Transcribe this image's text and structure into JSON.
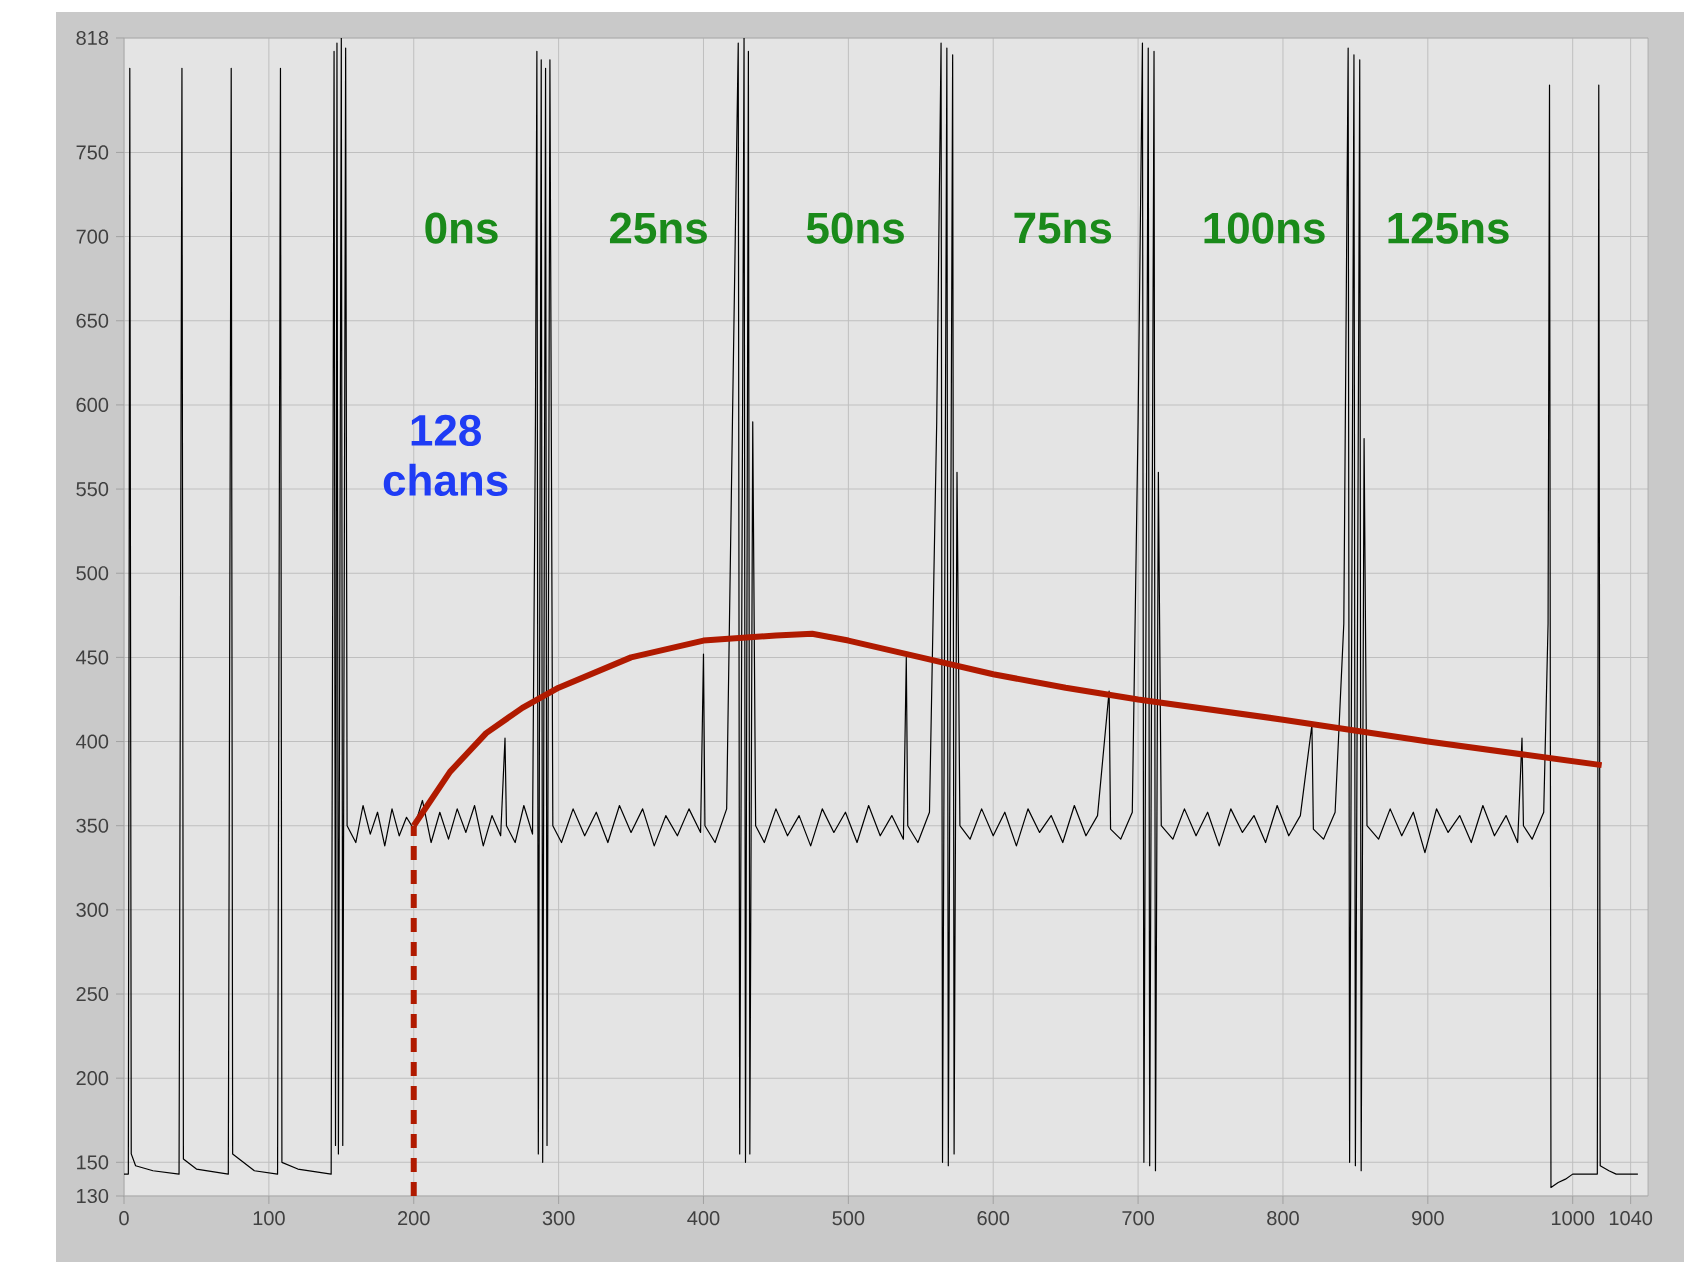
{
  "chart_data": {
    "type": "line",
    "xlim": [
      0,
      1052
    ],
    "ylim": [
      130,
      818
    ],
    "xticks": [
      0,
      100,
      200,
      300,
      400,
      500,
      600,
      700,
      800,
      900,
      1000,
      1040
    ],
    "yticks": [
      130,
      150,
      200,
      250,
      300,
      350,
      400,
      450,
      500,
      550,
      600,
      650,
      700,
      750,
      818
    ],
    "grid": true,
    "marker": "none",
    "annotations": [
      "0ns",
      "25ns",
      "50ns",
      "75ns",
      "100ns",
      "125ns",
      "128 chans"
    ],
    "series": [
      {
        "color": "#000000",
        "line_style": "solid",
        "x": [
          0,
          3,
          4,
          5,
          8,
          20,
          38,
          40,
          41,
          50,
          72,
          74,
          75,
          90,
          106,
          108,
          109,
          120,
          143,
          144,
          145,
          146,
          147,
          148,
          150,
          151,
          153,
          154,
          160,
          165,
          170,
          175,
          180,
          185,
          190,
          195,
          200,
          206,
          212,
          218,
          224,
          230,
          236,
          242,
          248,
          254,
          260,
          263,
          264,
          270,
          276,
          282,
          284,
          285,
          286,
          288,
          289,
          291,
          292,
          294,
          296,
          302,
          310,
          318,
          326,
          334,
          342,
          350,
          358,
          366,
          374,
          382,
          390,
          398,
          400,
          401,
          408,
          416,
          420,
          424,
          425,
          428,
          429,
          431,
          432,
          434,
          436,
          442,
          450,
          458,
          466,
          474,
          482,
          490,
          498,
          506,
          514,
          522,
          530,
          538,
          540,
          541,
          548,
          556,
          561,
          564,
          565,
          568,
          569,
          572,
          573,
          575,
          577,
          584,
          592,
          600,
          608,
          616,
          624,
          632,
          640,
          648,
          656,
          664,
          672,
          680,
          681,
          688,
          696,
          700,
          703,
          704,
          707,
          708,
          711,
          712,
          714,
          716,
          724,
          732,
          740,
          748,
          756,
          764,
          772,
          780,
          788,
          796,
          804,
          812,
          820,
          821,
          828,
          836,
          842,
          845,
          846,
          849,
          850,
          853,
          854,
          856,
          858,
          866,
          874,
          882,
          890,
          898,
          906,
          914,
          922,
          930,
          938,
          946,
          954,
          962,
          965,
          966,
          972,
          980,
          983,
          984,
          985,
          990,
          995,
          1000,
          1017,
          1018,
          1019,
          1025,
          1030,
          1045
        ],
        "values": [
          143,
          143,
          800,
          155,
          148,
          145,
          143,
          800,
          152,
          146,
          143,
          800,
          155,
          145,
          143,
          800,
          150,
          146,
          143,
          470,
          810,
          160,
          815,
          155,
          818,
          160,
          812,
          350,
          340,
          362,
          345,
          358,
          338,
          360,
          344,
          355,
          348,
          365,
          340,
          358,
          342,
          360,
          346,
          362,
          338,
          356,
          344,
          402,
          350,
          340,
          362,
          345,
          590,
          810,
          155,
          805,
          150,
          800,
          160,
          805,
          350,
          340,
          360,
          344,
          358,
          340,
          362,
          346,
          360,
          338,
          356,
          344,
          360,
          346,
          452,
          350,
          340,
          360,
          590,
          815,
          155,
          818,
          150,
          810,
          155,
          590,
          350,
          340,
          360,
          344,
          356,
          338,
          360,
          346,
          358,
          340,
          362,
          344,
          356,
          342,
          450,
          350,
          340,
          358,
          590,
          815,
          150,
          812,
          148,
          808,
          155,
          560,
          350,
          342,
          360,
          344,
          358,
          338,
          360,
          346,
          356,
          340,
          362,
          344,
          356,
          430,
          348,
          342,
          358,
          590,
          815,
          150,
          812,
          148,
          810,
          145,
          560,
          350,
          342,
          360,
          344,
          358,
          338,
          360,
          346,
          356,
          340,
          362,
          344,
          356,
          410,
          348,
          342,
          358,
          470,
          812,
          150,
          808,
          148,
          805,
          145,
          580,
          350,
          342,
          360,
          344,
          358,
          334,
          360,
          346,
          356,
          340,
          362,
          344,
          356,
          340,
          402,
          350,
          342,
          358,
          470,
          790,
          135,
          138,
          140,
          143,
          143,
          790,
          148,
          145,
          143,
          143
        ]
      },
      {
        "color": "#b01a00",
        "line_style": "solid",
        "x": [
          200,
          225,
          250,
          275,
          300,
          350,
          400,
          450,
          475,
          500,
          550,
          600,
          650,
          700,
          800,
          900,
          1020
        ],
        "values": [
          350,
          382,
          405,
          420,
          432,
          450,
          460,
          463,
          464,
          460,
          450,
          440,
          432,
          425,
          413,
          400,
          386
        ]
      },
      {
        "color": "#b01a00",
        "line_style": "dashed",
        "x": [
          200,
          200
        ],
        "values": [
          130,
          350
        ]
      }
    ]
  }
}
